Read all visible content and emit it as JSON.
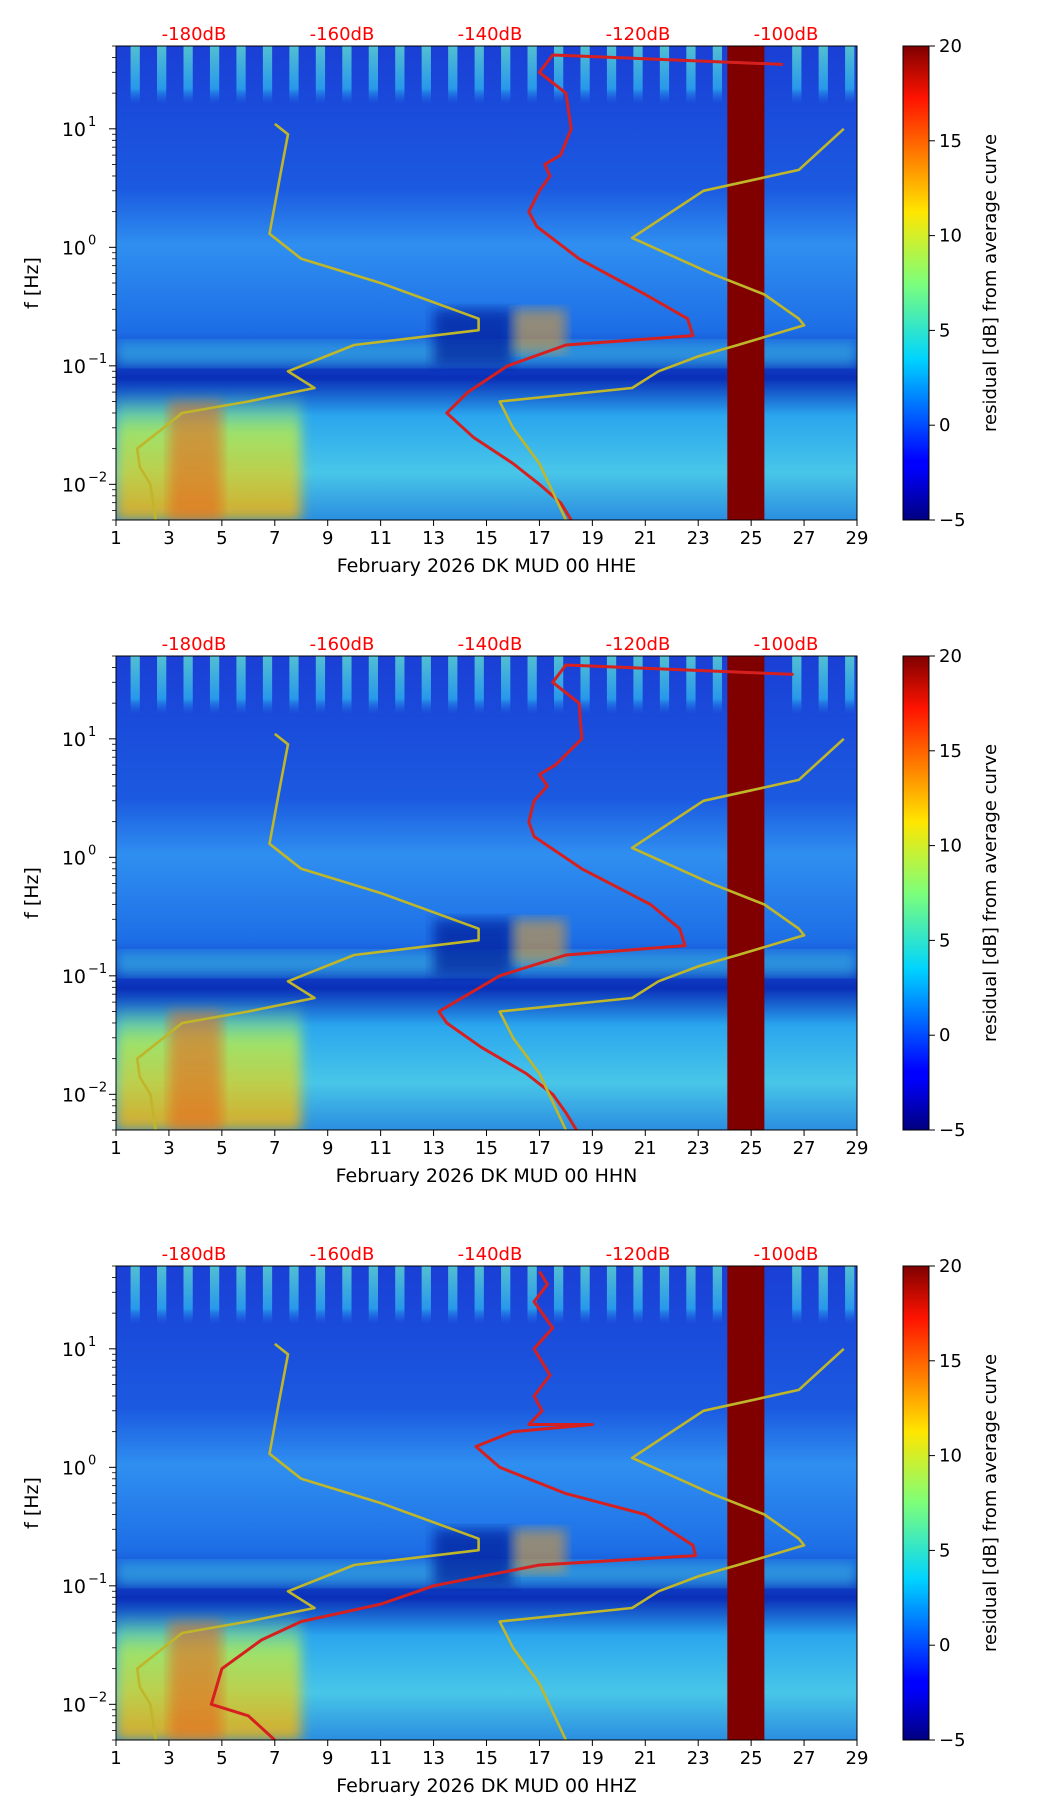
{
  "chart_data": [
    {
      "type": "heatmap",
      "xlabel": "February 2026 DK MUD 00 HHE",
      "ylabel": "f [Hz]",
      "x_ticks": [
        "1",
        "3",
        "5",
        "7",
        "9",
        "11",
        "13",
        "15",
        "17",
        "19",
        "21",
        "23",
        "25",
        "27",
        "29"
      ],
      "x_range": [
        1,
        29
      ],
      "y_range": [
        0.005,
        50
      ],
      "y_scale": "log",
      "y_ticks": [
        {
          "base": "10",
          "exp": "−2"
        },
        {
          "base": "10",
          "exp": "−1"
        },
        {
          "base": "10",
          "exp": "0"
        },
        {
          "base": "10",
          "exp": "1"
        }
      ],
      "top_ticks": [
        "-180dB",
        "-160dB",
        "-140dB",
        "-120dB",
        "-100dB"
      ],
      "top_ticks_color": "#ff0000",
      "colorbar": {
        "label": "residual [dB] from average curve",
        "ticks": [
          "−5",
          "0",
          "5",
          "10",
          "15",
          "20"
        ],
        "range": [
          -5,
          20
        ]
      },
      "gap_days": [
        24.1,
        25.5
      ],
      "series": [
        {
          "color": "#d62020",
          "points": [
            [
              26.2,
              35
            ],
            [
              17.5,
              42
            ],
            [
              17.0,
              30
            ],
            [
              18.0,
              20
            ],
            [
              18.2,
              10
            ],
            [
              17.8,
              6
            ],
            [
              17.2,
              5
            ],
            [
              17.4,
              4
            ],
            [
              17.0,
              3
            ],
            [
              16.6,
              2
            ],
            [
              16.9,
              1.5
            ],
            [
              18.5,
              0.8
            ],
            [
              21.0,
              0.4
            ],
            [
              22.6,
              0.25
            ],
            [
              22.8,
              0.18
            ],
            [
              18.0,
              0.15
            ],
            [
              15.8,
              0.1
            ],
            [
              14.3,
              0.06
            ],
            [
              13.5,
              0.04
            ],
            [
              14.5,
              0.025
            ],
            [
              16.0,
              0.015
            ],
            [
              17.0,
              0.01
            ],
            [
              17.8,
              0.007
            ],
            [
              18.2,
              0.005
            ]
          ]
        },
        {
          "color": "#bfb62a",
          "points": [
            [
              7.0,
              11
            ],
            [
              7.5,
              9
            ],
            [
              7.2,
              4
            ],
            [
              6.8,
              1.3
            ],
            [
              8.0,
              0.8
            ],
            [
              11.0,
              0.5
            ],
            [
              14.7,
              0.25
            ],
            [
              14.7,
              0.2
            ],
            [
              10.0,
              0.15
            ],
            [
              7.5,
              0.09
            ],
            [
              8.5,
              0.065
            ],
            [
              6.0,
              0.05
            ],
            [
              3.5,
              0.04
            ],
            [
              1.8,
              0.02
            ],
            [
              1.9,
              0.014
            ],
            [
              2.3,
              0.01
            ],
            [
              2.5,
              0.005
            ]
          ]
        },
        {
          "color": "#bfb62a",
          "points": [
            [
              28.5,
              10
            ],
            [
              26.8,
              4.5
            ],
            [
              23.2,
              3
            ],
            [
              20.5,
              1.2
            ],
            [
              23.5,
              0.6
            ],
            [
              25.5,
              0.4
            ],
            [
              26.8,
              0.25
            ],
            [
              27.0,
              0.22
            ],
            [
              24.5,
              0.15
            ],
            [
              23.0,
              0.12
            ],
            [
              21.5,
              0.09
            ],
            [
              20.5,
              0.065
            ],
            [
              15.5,
              0.05
            ],
            [
              16.0,
              0.03
            ],
            [
              17.0,
              0.015
            ],
            [
              18.0,
              0.005
            ]
          ]
        }
      ]
    },
    {
      "type": "heatmap",
      "xlabel": "February 2026 DK MUD 00 HHN",
      "ylabel": "f [Hz]",
      "x_ticks": [
        "1",
        "3",
        "5",
        "7",
        "9",
        "11",
        "13",
        "15",
        "17",
        "19",
        "21",
        "23",
        "25",
        "27",
        "29"
      ],
      "x_range": [
        1,
        29
      ],
      "y_range": [
        0.005,
        50
      ],
      "y_scale": "log",
      "y_ticks": [
        {
          "base": "10",
          "exp": "−2"
        },
        {
          "base": "10",
          "exp": "−1"
        },
        {
          "base": "10",
          "exp": "0"
        },
        {
          "base": "10",
          "exp": "1"
        }
      ],
      "top_ticks": [
        "-180dB",
        "-160dB",
        "-140dB",
        "-120dB",
        "-100dB"
      ],
      "top_ticks_color": "#ff0000",
      "colorbar": {
        "label": "residual [dB] from average curve",
        "ticks": [
          "−5",
          "0",
          "5",
          "10",
          "15",
          "20"
        ],
        "range": [
          -5,
          20
        ]
      },
      "gap_days": [
        24.1,
        25.5
      ],
      "series": [
        {
          "color": "#d62020",
          "points": [
            [
              26.6,
              35
            ],
            [
              18.0,
              42
            ],
            [
              17.5,
              30
            ],
            [
              18.5,
              20
            ],
            [
              18.6,
              10
            ],
            [
              17.6,
              6
            ],
            [
              17.0,
              5
            ],
            [
              17.3,
              4
            ],
            [
              16.8,
              3
            ],
            [
              16.6,
              2
            ],
            [
              16.8,
              1.5
            ],
            [
              18.6,
              0.8
            ],
            [
              21.2,
              0.4
            ],
            [
              22.3,
              0.25
            ],
            [
              22.5,
              0.18
            ],
            [
              18.0,
              0.15
            ],
            [
              15.5,
              0.1
            ],
            [
              13.2,
              0.05
            ],
            [
              13.5,
              0.04
            ],
            [
              14.8,
              0.025
            ],
            [
              16.5,
              0.015
            ],
            [
              17.5,
              0.01
            ],
            [
              18.0,
              0.007
            ],
            [
              18.4,
              0.005
            ]
          ]
        },
        {
          "color": "#bfb62a",
          "points": [
            [
              7.0,
              11
            ],
            [
              7.5,
              9
            ],
            [
              7.2,
              4
            ],
            [
              6.8,
              1.3
            ],
            [
              8.0,
              0.8
            ],
            [
              11.0,
              0.5
            ],
            [
              14.7,
              0.25
            ],
            [
              14.7,
              0.2
            ],
            [
              10.0,
              0.15
            ],
            [
              7.5,
              0.09
            ],
            [
              8.5,
              0.065
            ],
            [
              6.0,
              0.05
            ],
            [
              3.5,
              0.04
            ],
            [
              1.8,
              0.02
            ],
            [
              1.9,
              0.014
            ],
            [
              2.3,
              0.01
            ],
            [
              2.5,
              0.005
            ]
          ]
        },
        {
          "color": "#bfb62a",
          "points": [
            [
              28.5,
              10
            ],
            [
              26.8,
              4.5
            ],
            [
              23.2,
              3
            ],
            [
              20.5,
              1.2
            ],
            [
              23.5,
              0.6
            ],
            [
              25.5,
              0.4
            ],
            [
              26.8,
              0.25
            ],
            [
              27.0,
              0.22
            ],
            [
              24.5,
              0.15
            ],
            [
              23.0,
              0.12
            ],
            [
              21.5,
              0.09
            ],
            [
              20.5,
              0.065
            ],
            [
              15.5,
              0.05
            ],
            [
              16.0,
              0.03
            ],
            [
              17.0,
              0.015
            ],
            [
              18.0,
              0.005
            ]
          ]
        }
      ]
    },
    {
      "type": "heatmap",
      "xlabel": "February 2026 DK MUD 00 HHZ",
      "ylabel": "f [Hz]",
      "x_ticks": [
        "1",
        "3",
        "5",
        "7",
        "9",
        "11",
        "13",
        "15",
        "17",
        "19",
        "21",
        "23",
        "25",
        "27",
        "29"
      ],
      "x_range": [
        1,
        29
      ],
      "y_range": [
        0.005,
        50
      ],
      "y_scale": "log",
      "y_ticks": [
        {
          "base": "10",
          "exp": "−2"
        },
        {
          "base": "10",
          "exp": "−1"
        },
        {
          "base": "10",
          "exp": "0"
        },
        {
          "base": "10",
          "exp": "1"
        }
      ],
      "top_ticks": [
        "-180dB",
        "-160dB",
        "-140dB",
        "-120dB",
        "-100dB"
      ],
      "top_ticks_color": "#ff0000",
      "colorbar": {
        "label": "residual [dB] from average curve",
        "ticks": [
          "−5",
          "0",
          "5",
          "10",
          "15",
          "20"
        ],
        "range": [
          -5,
          20
        ]
      },
      "gap_days": [
        24.1,
        25.5
      ],
      "series": [
        {
          "color": "#d62020",
          "points": [
            [
              17.0,
              45
            ],
            [
              17.3,
              35
            ],
            [
              16.8,
              25
            ],
            [
              17.5,
              15
            ],
            [
              16.8,
              10
            ],
            [
              17.4,
              6
            ],
            [
              16.8,
              4
            ],
            [
              17.1,
              3
            ],
            [
              16.6,
              2.3
            ],
            [
              19.0,
              2.3
            ],
            [
              16.0,
              2
            ],
            [
              14.6,
              1.5
            ],
            [
              15.5,
              1.0
            ],
            [
              18.0,
              0.6
            ],
            [
              21.0,
              0.4
            ],
            [
              22.8,
              0.22
            ],
            [
              22.9,
              0.18
            ],
            [
              17.0,
              0.15
            ],
            [
              13.0,
              0.1
            ],
            [
              11.0,
              0.07
            ],
            [
              8.0,
              0.05
            ],
            [
              6.5,
              0.035
            ],
            [
              5.0,
              0.02
            ],
            [
              4.6,
              0.01
            ],
            [
              6.0,
              0.008
            ],
            [
              7.0,
              0.005
            ]
          ]
        },
        {
          "color": "#bfb62a",
          "points": [
            [
              7.0,
              11
            ],
            [
              7.5,
              9
            ],
            [
              7.2,
              4
            ],
            [
              6.8,
              1.3
            ],
            [
              8.0,
              0.8
            ],
            [
              11.0,
              0.5
            ],
            [
              14.7,
              0.25
            ],
            [
              14.7,
              0.2
            ],
            [
              10.0,
              0.15
            ],
            [
              7.5,
              0.09
            ],
            [
              8.5,
              0.065
            ],
            [
              6.0,
              0.05
            ],
            [
              3.5,
              0.04
            ],
            [
              1.8,
              0.02
            ],
            [
              1.9,
              0.014
            ],
            [
              2.3,
              0.01
            ],
            [
              2.5,
              0.005
            ]
          ]
        },
        {
          "color": "#bfb62a",
          "points": [
            [
              28.5,
              10
            ],
            [
              26.8,
              4.5
            ],
            [
              23.2,
              3
            ],
            [
              20.5,
              1.2
            ],
            [
              23.5,
              0.6
            ],
            [
              25.5,
              0.4
            ],
            [
              26.8,
              0.25
            ],
            [
              27.0,
              0.22
            ],
            [
              24.5,
              0.15
            ],
            [
              23.0,
              0.12
            ],
            [
              21.5,
              0.09
            ],
            [
              20.5,
              0.065
            ],
            [
              15.5,
              0.05
            ],
            [
              16.0,
              0.03
            ],
            [
              17.0,
              0.015
            ],
            [
              18.0,
              0.005
            ]
          ]
        }
      ]
    }
  ]
}
